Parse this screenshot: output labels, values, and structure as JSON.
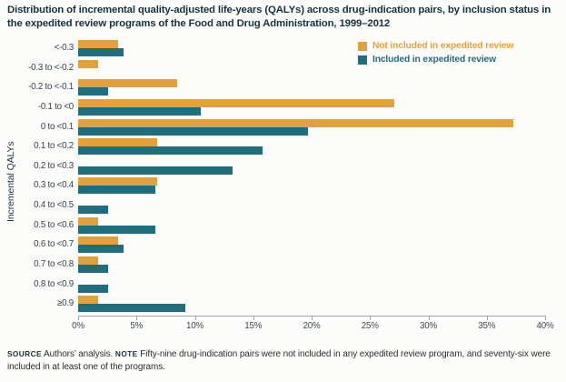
{
  "title": "Distribution of incremental quality-adjusted life-years (QALYs) across drug-indication pairs, by inclusion status in the expedited review programs of the Food and Drug Administration, 1999–2012",
  "legend": [
    {
      "label": "Not included in expedited review",
      "color": "#E2A13B"
    },
    {
      "label": "Included in expedited review",
      "color": "#1F6E7E"
    }
  ],
  "chart_data": {
    "type": "bar",
    "orientation": "horizontal",
    "title": "Distribution of incremental quality-adjusted life-years (QALYs) across drug-indication pairs, by inclusion status in the expedited review programs of the Food and Drug Administration, 1999–2012",
    "ylabel": "Incremental QALYs",
    "xlabel": "",
    "xlim": [
      0,
      40
    ],
    "x_tick_labels": [
      "0%",
      "5%",
      "10%",
      "15%",
      "20%",
      "25%",
      "30%",
      "35%",
      "40%"
    ],
    "x_tick_values": [
      0,
      5,
      10,
      15,
      20,
      25,
      30,
      35,
      40
    ],
    "grid": false,
    "legend_position": "top-right",
    "categories": [
      "<-0.3",
      "-0.3 to <-0.2",
      "-0.2 to <-0.1",
      "-0.1 to <0",
      "0 to <0.1",
      "0.1 to <0.2",
      "0.2 to <0.3",
      "0.3 to <0.4",
      "0.4 to <0.5",
      "0.5 to <0.6",
      "0.6 to <0.7",
      "0.7 to <0.8",
      "0.8 to <0.9",
      "≥0.9"
    ],
    "series": [
      {
        "name": "Not included in expedited review",
        "color": "#E2A13B",
        "values": [
          3.4,
          1.7,
          8.5,
          27.1,
          37.3,
          6.8,
          0,
          6.8,
          0,
          1.7,
          3.4,
          1.7,
          0,
          1.7
        ]
      },
      {
        "name": "Included in expedited review",
        "color": "#1F6E7E",
        "values": [
          3.9,
          0,
          2.6,
          10.5,
          19.7,
          15.8,
          13.2,
          6.6,
          2.6,
          6.6,
          3.9,
          2.6,
          2.6,
          9.2
        ]
      }
    ]
  },
  "footer": {
    "source_label": "SOURCE",
    "source_text": " Authors’ analysis. ",
    "note_label": "NOTE",
    "note_text": " Fifty-nine drug-indication pairs were not included in any expedited review program, and seventy-six were included in at least one of the programs."
  }
}
